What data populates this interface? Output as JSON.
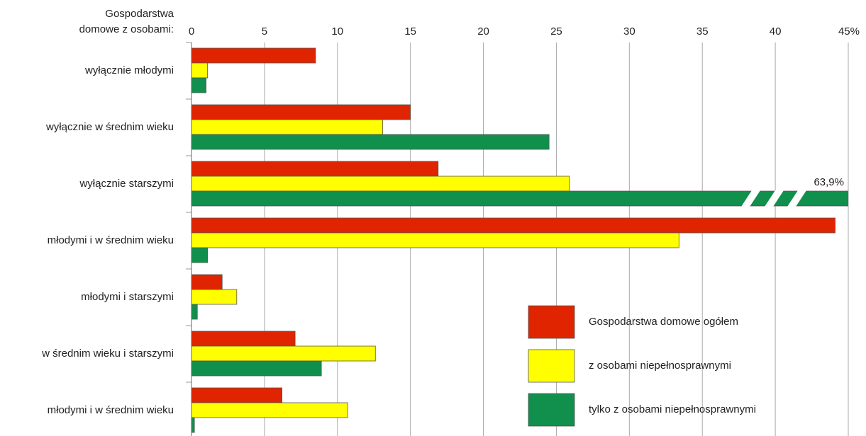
{
  "chart_data": {
    "type": "barh",
    "y_label": [
      "Gospodarstwa",
      "domowe z osobami:"
    ],
    "categories": [
      "wyłącznie młodymi",
      "wyłącznie w średnim wieku",
      "wyłącznie starszymi",
      "młodymi i w średnim wieku",
      "młodymi i starszymi",
      "w średnim wieku i starszymi",
      "młodymi i w średnim wieku"
    ],
    "series": [
      {
        "name": "Gospodarstwa domowe ogółem",
        "color": "#e02400",
        "values": [
          8.5,
          15.0,
          16.9,
          44.1,
          2.1,
          7.1,
          6.2
        ]
      },
      {
        "name": "z osobami niepełnosprawnymi",
        "color": "#ffff00",
        "values": [
          1.1,
          13.1,
          25.9,
          33.4,
          3.1,
          12.6,
          10.7
        ]
      },
      {
        "name": "tylko z osobami niepełnosprawnymi",
        "color": "#10904c",
        "values": [
          1.0,
          24.5,
          63.9,
          1.1,
          0.4,
          8.9,
          0.2
        ],
        "value_labels": [
          null,
          null,
          "63,9%",
          null,
          null,
          null,
          null
        ]
      }
    ],
    "xlim": [
      0,
      45
    ],
    "xticks": [
      0,
      5,
      10,
      15,
      20,
      25,
      30,
      35,
      40,
      {
        "value": 45,
        "label": "45%"
      }
    ],
    "grid": true,
    "legend": "lower right"
  }
}
